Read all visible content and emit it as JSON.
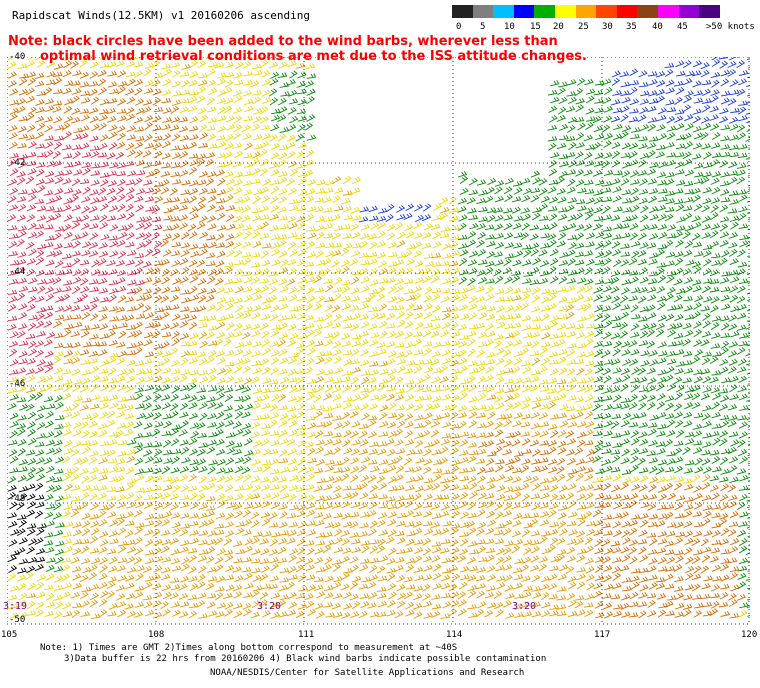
{
  "header": {
    "title": "Rapidscat Winds(12.5KM) v1 20160206 ascending",
    "note_line1": "Note: black circles have been added to the wind barbs, wherever less than",
    "note_line2": "optimal wind retrieval conditions are met due to the ISS attitude changes."
  },
  "legend": {
    "labels": [
      "0",
      "5",
      "10",
      "15",
      "20",
      "25",
      "30",
      "35",
      "40",
      "45",
      ">50 knots"
    ],
    "colors": [
      "#222222",
      "#7f7f7f",
      "#00bfff",
      "#0000ff",
      "#00b000",
      "#ffff00",
      "#ffa500",
      "#ff4500",
      "#ff0000",
      "#8b4513",
      "#ff00ff",
      "#9400d3",
      "#4b0082"
    ]
  },
  "axes": {
    "lat_labels": [
      "-40",
      "-42",
      "-44",
      "-46",
      "-48",
      "-50"
    ],
    "lon_labels": [
      "105",
      "108",
      "111",
      "114",
      "117",
      "120"
    ]
  },
  "time_labels": [
    "3:19",
    "3:20",
    "3:20"
  ],
  "footnotes": {
    "line1": "Note: 1) Times are GMT 2)Times along bottom correspond to measurement at ~40S",
    "line2": "3)Data buffer is 22 hrs from 20160206 4) Black wind barbs indicate possible contamination",
    "credit": "NOAA/NESDIS/Center for Satellite Applications and Research"
  },
  "colors": {
    "yellow": "#f0d800",
    "orange": "#e89a00",
    "darkorange": "#d96a00",
    "red": "#e0284a",
    "green": "#0a8a0a",
    "blue": "#1a3adc",
    "black": "#000000"
  }
}
